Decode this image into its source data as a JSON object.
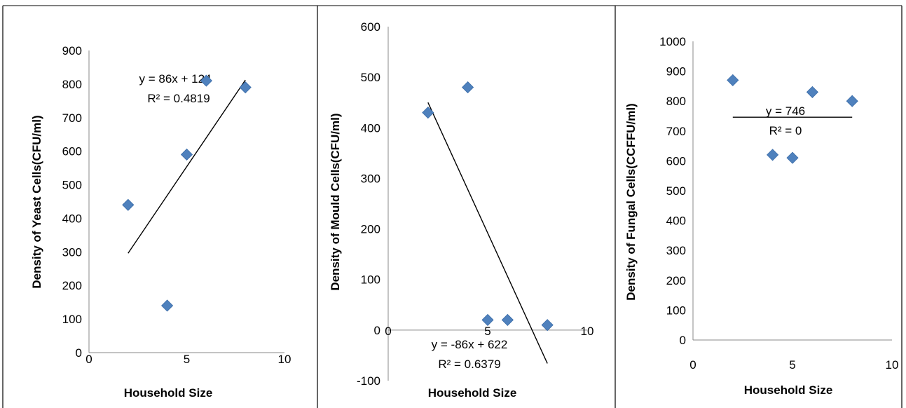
{
  "chart_data": [
    {
      "type": "scatter",
      "xlabel": "Household Size",
      "ylabel": "Density of Yeast Cells(CFU/ml)",
      "xlim": [
        0,
        10
      ],
      "ylim": [
        0,
        900
      ],
      "xticks": [
        "0",
        "5",
        "10"
      ],
      "yticks": [
        "0",
        "100",
        "200",
        "300",
        "400",
        "500",
        "600",
        "700",
        "800",
        "900"
      ],
      "points": [
        {
          "x": 2,
          "y": 440
        },
        {
          "x": 4,
          "y": 140
        },
        {
          "x": 5,
          "y": 590
        },
        {
          "x": 6,
          "y": 810
        },
        {
          "x": 8,
          "y": 790
        }
      ],
      "trendline": {
        "x": [
          2,
          8
        ],
        "y": [
          296,
          812
        ]
      },
      "equation": "y = 86x + 124",
      "r2": "R² = 0.4819",
      "marker_color": "#4f81bd"
    },
    {
      "type": "scatter",
      "xlabel": "Household Size",
      "ylabel": "Density of Mould Cells(CFU/ml)",
      "xlim": [
        0,
        10
      ],
      "ylim": [
        -100,
        600
      ],
      "xticks": [
        "0",
        "5",
        "10"
      ],
      "yticks": [
        "-100",
        "0",
        "100",
        "200",
        "300",
        "400",
        "500",
        "600"
      ],
      "points": [
        {
          "x": 2,
          "y": 430
        },
        {
          "x": 4,
          "y": 480
        },
        {
          "x": 5,
          "y": 20
        },
        {
          "x": 6,
          "y": 20
        },
        {
          "x": 8,
          "y": 10
        }
      ],
      "trendline": {
        "x": [
          2,
          8
        ],
        "y": [
          450,
          -66
        ]
      },
      "equation": "y = -86x + 622",
      "r2": "R² = 0.6379",
      "marker_color": "#4f81bd"
    },
    {
      "type": "scatter",
      "xlabel": "Household Size",
      "ylabel": "Density of Fungal Cells(CCFFU/ml)",
      "xlim": [
        0,
        10
      ],
      "ylim": [
        0,
        1000
      ],
      "xticks": [
        "0",
        "5",
        "10"
      ],
      "yticks": [
        "0",
        "100",
        "200",
        "300",
        "400",
        "500",
        "600",
        "700",
        "800",
        "900",
        "1000"
      ],
      "points": [
        {
          "x": 2,
          "y": 870
        },
        {
          "x": 4,
          "y": 620
        },
        {
          "x": 5,
          "y": 610
        },
        {
          "x": 6,
          "y": 830
        },
        {
          "x": 8,
          "y": 800
        }
      ],
      "trendline": {
        "x": [
          2,
          8
        ],
        "y": [
          746,
          746
        ]
      },
      "equation": "y = 746",
      "r2": "R² = 0",
      "marker_color": "#4f81bd"
    }
  ]
}
